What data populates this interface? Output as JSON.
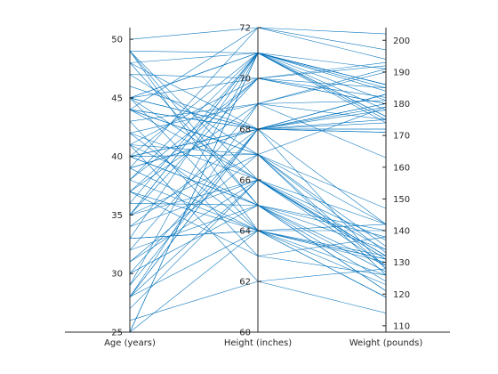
{
  "chart_data": {
    "type": "parallel-coordinates",
    "axes": [
      {
        "name": "Age (years)",
        "ylim": [
          25,
          51
        ],
        "ticks": [
          25,
          30,
          35,
          40,
          45,
          50
        ],
        "tick_labels": [
          "25",
          "30",
          "35",
          "40",
          "45",
          "50"
        ]
      },
      {
        "name": "Height (inches)",
        "ylim": [
          60,
          72
        ],
        "ticks": [
          60,
          62,
          64,
          66,
          68,
          70,
          72
        ],
        "tick_labels": [
          "60",
          "62",
          "64",
          "66",
          "68",
          "70",
          "72"
        ]
      },
      {
        "name": "Weight (pounds)",
        "ylim": [
          108,
          204
        ],
        "ticks": [
          110,
          120,
          130,
          140,
          150,
          160,
          170,
          180,
          190,
          200
        ],
        "tick_labels": [
          "110",
          "120",
          "130",
          "140",
          "150",
          "160",
          "170",
          "180",
          "190",
          "200"
        ]
      }
    ],
    "color": "#0072BD",
    "grid": false,
    "records": [
      [
        38,
        71,
        176
      ],
      [
        43,
        69,
        163
      ],
      [
        38,
        64,
        131
      ],
      [
        40,
        67,
        133
      ],
      [
        49,
        64,
        119
      ],
      [
        46,
        68,
        142
      ],
      [
        33,
        64,
        142
      ],
      [
        40,
        68,
        180
      ],
      [
        28,
        68,
        183
      ],
      [
        31,
        66,
        132
      ],
      [
        45,
        68,
        128
      ],
      [
        42,
        66,
        137
      ],
      [
        25,
        71,
        174
      ],
      [
        39,
        72,
        202
      ],
      [
        36,
        65,
        129
      ],
      [
        48,
        71,
        181
      ],
      [
        32,
        69,
        191
      ],
      [
        27,
        66,
        131
      ],
      [
        37,
        64,
        119
      ],
      [
        50,
        72,
        194
      ],
      [
        48,
        65,
        121
      ],
      [
        39,
        68,
        172
      ],
      [
        41,
        62,
        114
      ],
      [
        44,
        67,
        147
      ],
      [
        28,
        68,
        174
      ],
      [
        33,
        64,
        130
      ],
      [
        45,
        68,
        172
      ],
      [
        49,
        65,
        140
      ],
      [
        35,
        71,
        175
      ],
      [
        25,
        71,
        178
      ],
      [
        30,
        65,
        127
      ],
      [
        29,
        71,
        191
      ],
      [
        40,
        65,
        121
      ],
      [
        44,
        68,
        183
      ],
      [
        31,
        67,
        126
      ],
      [
        28,
        69,
        175
      ],
      [
        39,
        68,
        180
      ],
      [
        35,
        71,
        176
      ],
      [
        44,
        66,
        134
      ],
      [
        45,
        71,
        185
      ],
      [
        44,
        67,
        142
      ],
      [
        32,
        65,
        124
      ],
      [
        49,
        71,
        186
      ],
      [
        37,
        63,
        138
      ],
      [
        48,
        68,
        175
      ],
      [
        41,
        70,
        185
      ],
      [
        34,
        66,
        132
      ],
      [
        28,
        66,
        131
      ],
      [
        40,
        71,
        186
      ],
      [
        47,
        70,
        180
      ],
      [
        28,
        64,
        132
      ],
      [
        26,
        62,
        128
      ],
      [
        34,
        68,
        183
      ],
      [
        45,
        71,
        184
      ],
      [
        37,
        69,
        190
      ],
      [
        43,
        63,
        126
      ],
      [
        38,
        70,
        182
      ],
      [
        45,
        66,
        129
      ],
      [
        42,
        69,
        181
      ],
      [
        39,
        64,
        140
      ],
      [
        41,
        65,
        134
      ],
      [
        45,
        70,
        193
      ],
      [
        29,
        68,
        178
      ],
      [
        45,
        64,
        131
      ],
      [
        35,
        66,
        142
      ],
      [
        44,
        68,
        179
      ],
      [
        41,
        67,
        128
      ],
      [
        47,
        67,
        179
      ],
      [
        25,
        64,
        123
      ],
      [
        40,
        65,
        138
      ],
      [
        36,
        71,
        186
      ],
      [
        35,
        67,
        135
      ],
      [
        33,
        71,
        186
      ],
      [
        35,
        70,
        192
      ],
      [
        44,
        72,
        197
      ],
      [
        30,
        68,
        171
      ],
      [
        42,
        64,
        126
      ],
      [
        37,
        70,
        180
      ],
      [
        49,
        66,
        132
      ],
      [
        40,
        68,
        171
      ]
    ]
  }
}
